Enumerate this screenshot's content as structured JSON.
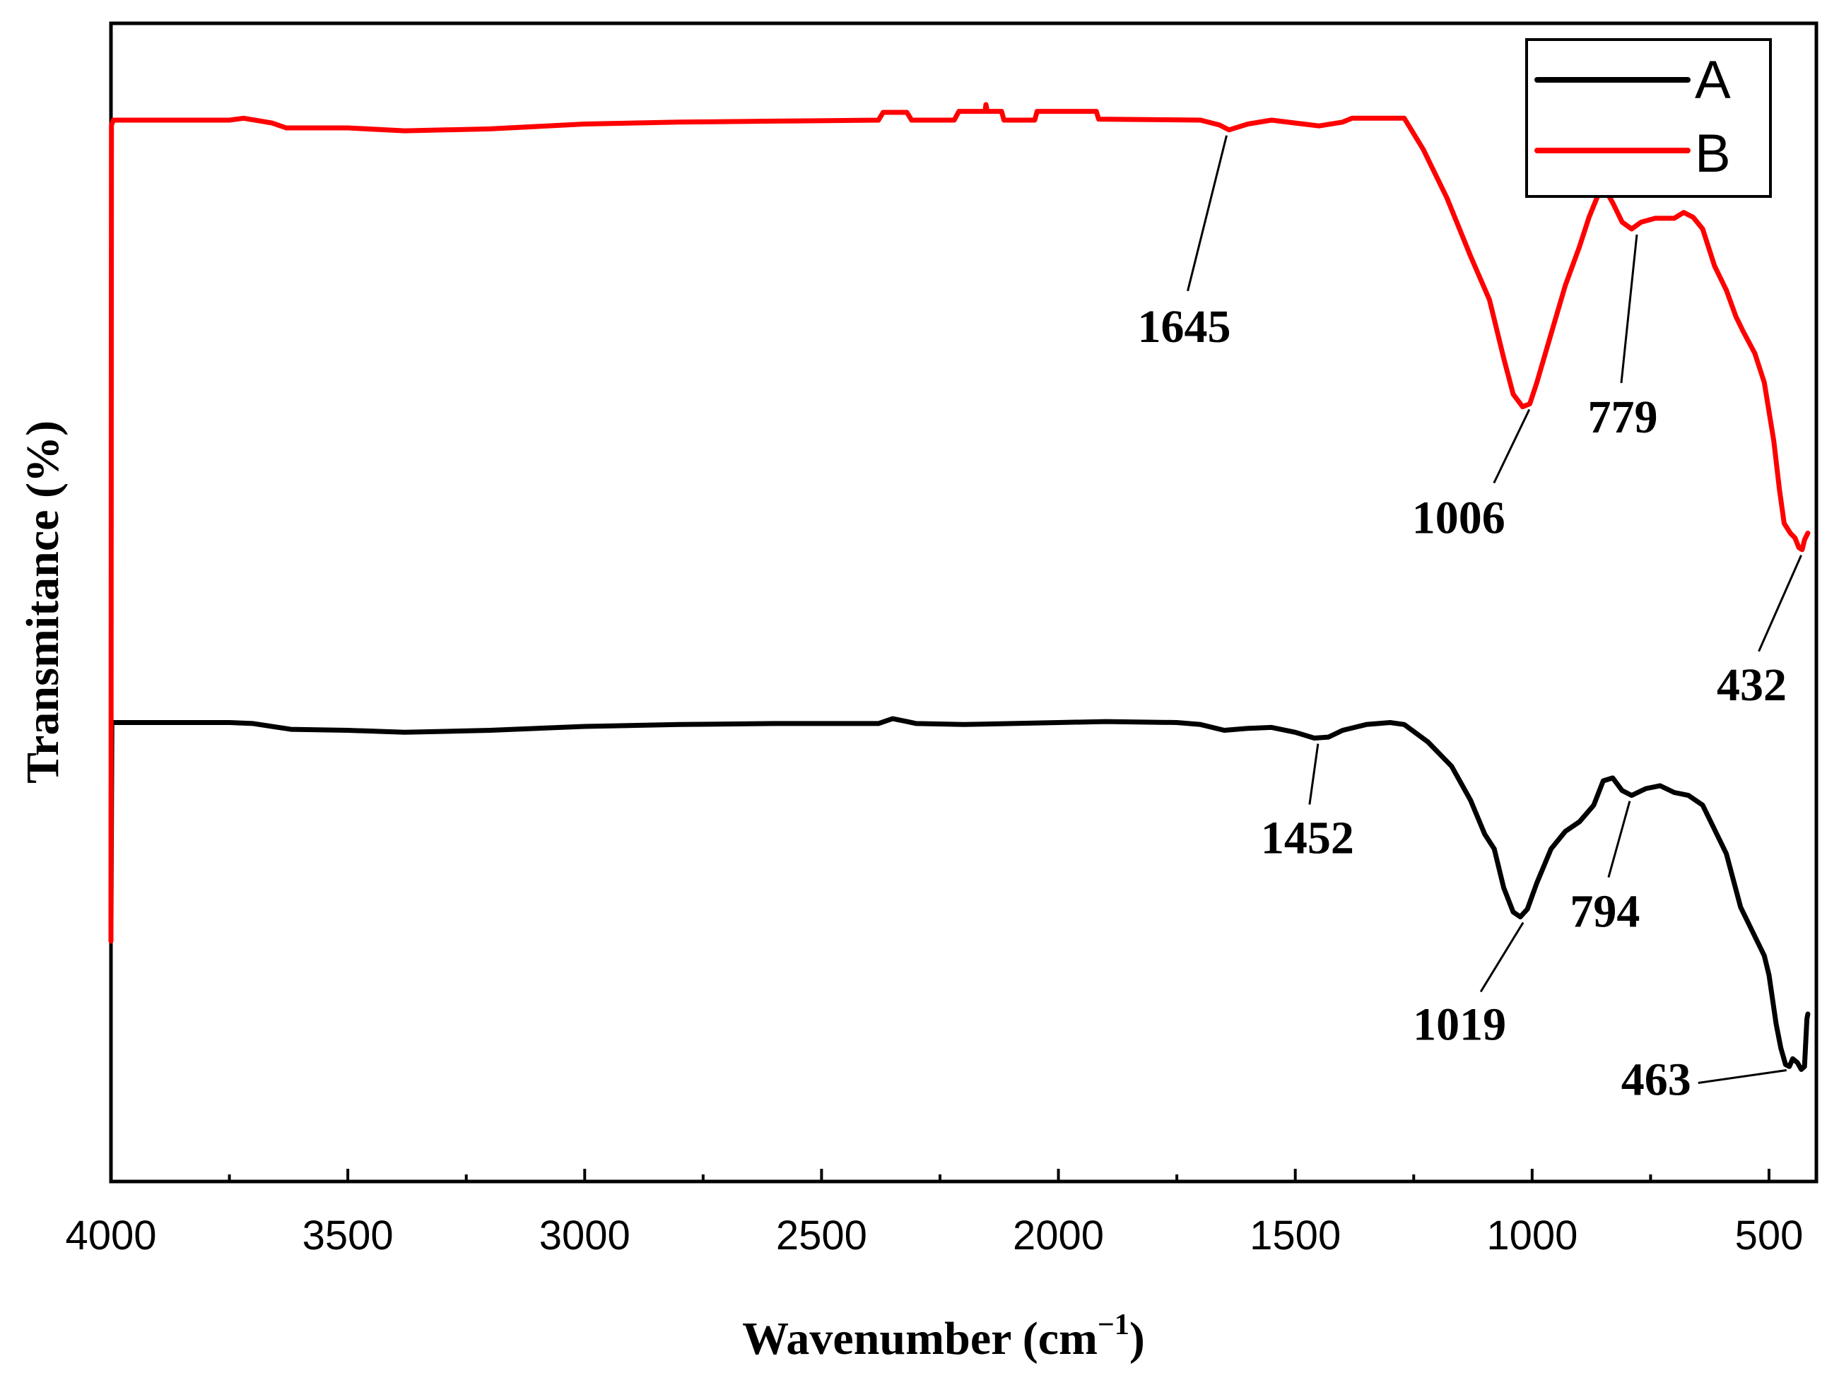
{
  "chart_data": {
    "type": "line",
    "title": "",
    "xlabel": "Wavenumber (cm",
    "xlabel_sup": "−1",
    "xlabel_close": ")",
    "ylabel": "Transmitance (%)",
    "xlim": [
      4000,
      400
    ],
    "ylim": [
      0,
      100
    ],
    "xticks": [
      4000,
      3500,
      3000,
      2500,
      2000,
      1500,
      1000,
      500
    ],
    "x_reversed": true,
    "y_tick_labels_shown": false,
    "legend_position": "top-right",
    "series": [
      {
        "name": "A",
        "color": "#000000",
        "points": [
          [
            4000,
            17
          ],
          [
            3998,
            38
          ],
          [
            3995,
            38
          ],
          [
            3750,
            38
          ],
          [
            3700,
            37.9
          ],
          [
            3620,
            37.3
          ],
          [
            3500,
            37.2
          ],
          [
            3380,
            37
          ],
          [
            3200,
            37.2
          ],
          [
            3000,
            37.6
          ],
          [
            2800,
            37.8
          ],
          [
            2600,
            37.9
          ],
          [
            2380,
            37.9
          ],
          [
            2350,
            38.4
          ],
          [
            2320,
            38.1
          ],
          [
            2300,
            37.9
          ],
          [
            2200,
            37.8
          ],
          [
            2000,
            38.0
          ],
          [
            1900,
            38.1
          ],
          [
            1750,
            38.0
          ],
          [
            1700,
            37.8
          ],
          [
            1650,
            37.2
          ],
          [
            1600,
            37.4
          ],
          [
            1550,
            37.5
          ],
          [
            1500,
            37
          ],
          [
            1460,
            36.4
          ],
          [
            1430,
            36.5
          ],
          [
            1400,
            37.2
          ],
          [
            1350,
            37.8
          ],
          [
            1300,
            38.0
          ],
          [
            1270,
            37.8
          ],
          [
            1220,
            36
          ],
          [
            1170,
            33.5
          ],
          [
            1130,
            30
          ],
          [
            1100,
            26.5
          ],
          [
            1080,
            25
          ],
          [
            1060,
            21
          ],
          [
            1040,
            18.5
          ],
          [
            1025,
            18
          ],
          [
            1010,
            18.8
          ],
          [
            990,
            21.5
          ],
          [
            960,
            25
          ],
          [
            930,
            26.8
          ],
          [
            900,
            27.8
          ],
          [
            870,
            29.5
          ],
          [
            850,
            32
          ],
          [
            830,
            32.3
          ],
          [
            810,
            31
          ],
          [
            790,
            30.5
          ],
          [
            760,
            31.2
          ],
          [
            730,
            31.5
          ],
          [
            700,
            30.8
          ],
          [
            670,
            30.5
          ],
          [
            640,
            29.5
          ],
          [
            620,
            27.5
          ],
          [
            590,
            24.5
          ],
          [
            560,
            19
          ],
          [
            530,
            16
          ],
          [
            510,
            14
          ],
          [
            500,
            12
          ],
          [
            485,
            7
          ],
          [
            475,
            4.5
          ],
          [
            465,
            2.8
          ],
          [
            457,
            2.6
          ],
          [
            450,
            3.4
          ],
          [
            440,
            3
          ],
          [
            432,
            2.3
          ],
          [
            425,
            2.6
          ],
          [
            420,
            7.5
          ],
          [
            418,
            8
          ]
        ]
      },
      {
        "name": "B",
        "color": "#ff0000",
        "points": [
          [
            4000,
            15.5
          ],
          [
            3999,
            99.5
          ],
          [
            3995,
            100
          ],
          [
            3750,
            100
          ],
          [
            3720,
            100.2
          ],
          [
            3660,
            99.7
          ],
          [
            3630,
            99.2
          ],
          [
            3500,
            99.2
          ],
          [
            3380,
            98.9
          ],
          [
            3200,
            99.1
          ],
          [
            3000,
            99.6
          ],
          [
            2800,
            99.8
          ],
          [
            2600,
            99.9
          ],
          [
            2380,
            100
          ],
          [
            2370,
            100.8
          ],
          [
            2320,
            100.8
          ],
          [
            2310,
            100
          ],
          [
            2220,
            100
          ],
          [
            2210,
            100.9
          ],
          [
            2155,
            100.9
          ],
          [
            2153,
            101.6
          ],
          [
            2150,
            100.9
          ],
          [
            2120,
            100.9
          ],
          [
            2115,
            100
          ],
          [
            2050,
            100
          ],
          [
            2045,
            100.9
          ],
          [
            1920,
            100.9
          ],
          [
            1915,
            100.1
          ],
          [
            1700,
            100
          ],
          [
            1660,
            99.5
          ],
          [
            1640,
            99.0
          ],
          [
            1600,
            99.6
          ],
          [
            1550,
            100
          ],
          [
            1500,
            99.7
          ],
          [
            1450,
            99.4
          ],
          [
            1400,
            99.8
          ],
          [
            1380,
            100.2
          ],
          [
            1300,
            100.2
          ],
          [
            1270,
            100.2
          ],
          [
            1230,
            97
          ],
          [
            1180,
            92
          ],
          [
            1130,
            86
          ],
          [
            1090,
            81.5
          ],
          [
            1060,
            75.5
          ],
          [
            1040,
            71.8
          ],
          [
            1020,
            70.5
          ],
          [
            1005,
            70.8
          ],
          [
            990,
            73
          ],
          [
            960,
            78
          ],
          [
            930,
            83
          ],
          [
            900,
            87
          ],
          [
            880,
            90
          ],
          [
            860,
            92.4
          ],
          [
            845,
            92.8
          ],
          [
            830,
            91.5
          ],
          [
            810,
            89.5
          ],
          [
            790,
            88.8
          ],
          [
            770,
            89.5
          ],
          [
            740,
            89.9
          ],
          [
            700,
            89.9
          ],
          [
            680,
            90.5
          ],
          [
            660,
            90
          ],
          [
            640,
            88.8
          ],
          [
            615,
            85
          ],
          [
            590,
            82.5
          ],
          [
            570,
            79.8
          ],
          [
            555,
            78.3
          ],
          [
            530,
            76
          ],
          [
            510,
            73
          ],
          [
            490,
            67
          ],
          [
            478,
            62
          ],
          [
            468,
            58.5
          ],
          [
            455,
            57.5
          ],
          [
            445,
            57
          ],
          [
            437,
            56
          ],
          [
            430,
            55.8
          ],
          [
            425,
            56.8
          ],
          [
            418,
            57.5
          ]
        ]
      }
    ],
    "annotations": [
      {
        "text": "1645",
        "series": "B",
        "x": 1645,
        "y": 99.0
      },
      {
        "text": "1006",
        "series": "B",
        "x": 1006,
        "y": 70.8
      },
      {
        "text": "779",
        "series": "B",
        "x": 779,
        "y": 88.8
      },
      {
        "text": "432",
        "series": "B",
        "x": 432,
        "y": 55.8
      },
      {
        "text": "1452",
        "series": "A",
        "x": 1452,
        "y": 36.4
      },
      {
        "text": "1019",
        "series": "A",
        "x": 1019,
        "y": 18
      },
      {
        "text": "794",
        "series": "A",
        "x": 794,
        "y": 30.5
      },
      {
        "text": "463",
        "series": "A",
        "x": 463,
        "y": 2.8
      }
    ]
  }
}
